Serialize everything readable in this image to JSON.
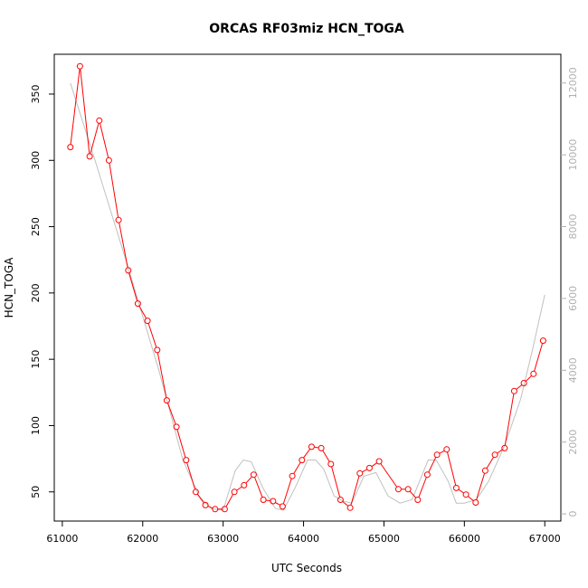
{
  "chart_data": {
    "type": "line",
    "title": "ORCAS RF03miz HCN_TOGA",
    "xlabel": "UTC Seconds",
    "ylabel": "HCN_TOGA",
    "xlim": [
      60900,
      67200
    ],
    "ylim": [
      28,
      380
    ],
    "y2lim": [
      -200,
      12800
    ],
    "x_ticks": [
      61000,
      62000,
      63000,
      64000,
      65000,
      66000,
      67000
    ],
    "y_ticks": [
      50,
      100,
      150,
      200,
      250,
      300,
      350
    ],
    "y2_ticks": [
      0,
      2000,
      4000,
      6000,
      8000,
      10000,
      12000
    ],
    "grid": false,
    "colors": {
      "primary": "#ff0000",
      "secondary": "#c0c0c0",
      "right_axis": "#b0b0b0"
    },
    "series": [
      {
        "axis": "left",
        "marker": "open-circle",
        "x": [
          61100,
          61220,
          61340,
          61460,
          61580,
          61700,
          61820,
          61940,
          62060,
          62180,
          62300,
          62420,
          62540,
          62660,
          62780,
          62900,
          63020,
          63140,
          63260,
          63380,
          63500,
          63620,
          63740,
          63860,
          63980,
          64100,
          64220,
          64340,
          64460,
          64580,
          64700,
          64820,
          64940,
          65180,
          65300,
          65420,
          65540,
          65660,
          65780,
          65900,
          66020,
          66140,
          66260,
          66380,
          66500,
          66620,
          66740,
          66860,
          66980
        ],
        "y": [
          310,
          371,
          303,
          330,
          300,
          255,
          217,
          192,
          179,
          157,
          119,
          99,
          74,
          50,
          40,
          37,
          37,
          50,
          55,
          63,
          44,
          43,
          39,
          62,
          74,
          84,
          83,
          71,
          44,
          38,
          64,
          68,
          73,
          52,
          52,
          44,
          63,
          78,
          82,
          53,
          48,
          42,
          66,
          78,
          83,
          126,
          132,
          139,
          164
        ]
      },
      {
        "axis": "right",
        "marker": "none",
        "x": [
          61100,
          61400,
          61800,
          62200,
          62500,
          62700,
          62850,
          63000,
          63150,
          63250,
          63350,
          63500,
          63650,
          63750,
          63900,
          64050,
          64150,
          64250,
          64380,
          64500,
          64600,
          64750,
          64900,
          65050,
          65200,
          65350,
          65550,
          65650,
          65800,
          65900,
          66000,
          66150,
          66300,
          66500,
          66700,
          66850,
          67000
        ],
        "y": [
          12000,
          9900,
          7000,
          4000,
          1500,
          500,
          150,
          100,
          1200,
          1500,
          1450,
          700,
          150,
          100,
          750,
          1500,
          1500,
          1250,
          500,
          350,
          300,
          1050,
          1150,
          500,
          300,
          400,
          1500,
          1500,
          900,
          300,
          300,
          400,
          900,
          1900,
          3200,
          4600,
          6100
        ]
      }
    ]
  }
}
